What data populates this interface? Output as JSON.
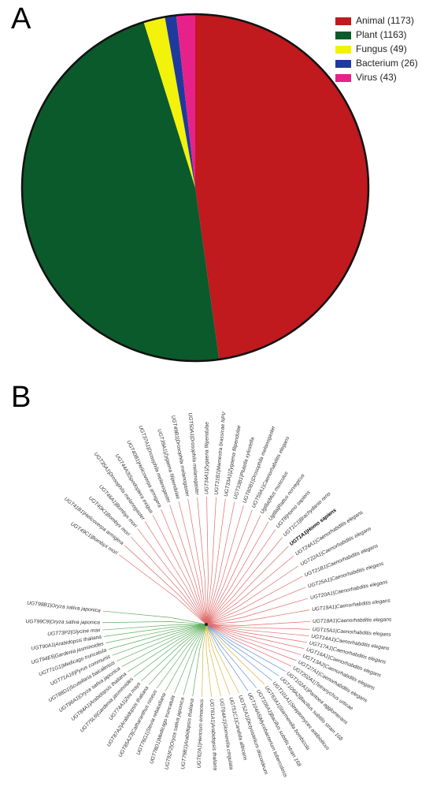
{
  "panel_labels": [
    "A",
    "B"
  ],
  "chart_data": {
    "type": "pie",
    "categories": [
      "Animal (1173)",
      "Plant (1163)",
      "Fungus (49)",
      "Bacterium (26)",
      "Virus (43)"
    ],
    "values": [
      1173,
      1163,
      49,
      26,
      43
    ],
    "colors": [
      "#c0191e",
      "#0b5a2b",
      "#f2f20a",
      "#1f3a9e",
      "#e6228a"
    ],
    "legend": "upper right"
  },
  "tree": {
    "groups": [
      {
        "color": "#e06a6a",
        "leaves": [
          "UGT49C1|Bombyx mori",
          "UGT41B1|Helicoverpa armigera",
          "UGT40K1|Bombyx mori",
          "UGT46A1|Bombyx mori",
          "UGT35A1|Drosophila melanogaster",
          "UGT44A3|Spodoptera exigua",
          "UGT40B1|Helicoverpa armigera",
          "UGT37A1|Drosophila melanogaster",
          "UGT39A1|Zygaena filipendulae",
          "UGT49B1|Drosophila melanogaster",
          "UGT50A1|Drosophila melanogaster",
          "UGT34A1|Zygaena filipendulae",
          "UGT31B1|Mamestra brassicae NPV",
          "UGT33A1|Zygaena filipendulae",
          "UGT33B1|Plutella xylostella",
          "UGT60B1|Drosophila melanogaster",
          "UGT59A1|Caenorhabditis elegans",
          "Ugt8a|Mus musculus",
          "Ugt8a|Rattus norvegicus",
          "UGT8|Homo sapiens",
          "UGT1C1|Brachydanio rerio",
          "UGT1A1|Homo sapiens",
          "UGT24A1|Caenorhabditis elegans",
          "UGT22A1|Caenorhabditis elegans",
          "UGT21B1|Caenorhabditis elegans",
          "UGT25A1|Caenorhabditis elegans",
          "UGT20A1|Caenorhabditis elegans",
          "UGT19A1|Caenorhabditis elegans",
          "UGT18A1|Caenorhabditis elegans",
          "UGT15A1|Caenorhabditis elegans",
          "UGT14A1|Caenorhabditis elegans",
          "UGT17A1|Caenorhabditis elegans",
          "UGT16A1|Caenorhabditis elegans",
          "UGT13A2|Caenorhabditis elegans",
          "UGT27A1|Caenorhabditis elegans",
          "UGT202A1|Tetranychus urticae"
        ]
      },
      {
        "color": "#5a8fd6",
        "leaves": [
          "UGT102A1|Pantoea agglomerans",
          "UGT109A2|Bacillus subtilis strain 168",
          "UGT101A1|Streptomyces antibioticus"
        ]
      },
      {
        "color": "#d8b43a",
        "leaves": [
          "UGT63A1|Starmerella bombicola"
        ]
      },
      {
        "color": "#5a8fd6",
        "leaves": [
          "UGT106A1|Bacillus subtilis strain 168",
          "UGT104A5|Mycobacterium tuberculosis"
        ]
      },
      {
        "color": "#d8b43a",
        "leaves": [
          "UGT52A1|Dictyostelium discoideum",
          "UGT51C1|Candida albicans",
          "UGT64A1|Glomerella cingulata",
          "UGT61A1|Arabidopsis thaliana",
          "UGT62A1|Hericium erinaceus"
        ]
      },
      {
        "color": "#5fae5f",
        "leaves": [
          "UGT79B1|Arabidopsis thaliana",
          "UGT92F2|Oryza sativa japonica",
          "UGT78D1|Medicago truncatula",
          "UGT76G1|Stevia rebaudiana",
          "UGT85A23|Catharanthus roseus",
          "UGT87A2|Arabidopsis thaliana",
          "UGT74A1|Zea mays",
          "UGT75L6|Gardenia jasminoides",
          "UGT84A1|Arabidopsis thaliana",
          "UGT96A1|Oryza sativa japonica",
          "UGT88D1|Scutellaria baicalensis",
          "UGT71A16|Pyrus communis",
          "UGT71G1|Medicago truncatula",
          "UGT94E5|Gardenia jasminoides",
          "UGT90A1|Arabidopsis thaliana",
          "UGT73P2|Glycine max",
          "UGT99C9|Oryza sativa japonica",
          "UGT98B1|Oryza sativa japonica"
        ]
      }
    ]
  }
}
